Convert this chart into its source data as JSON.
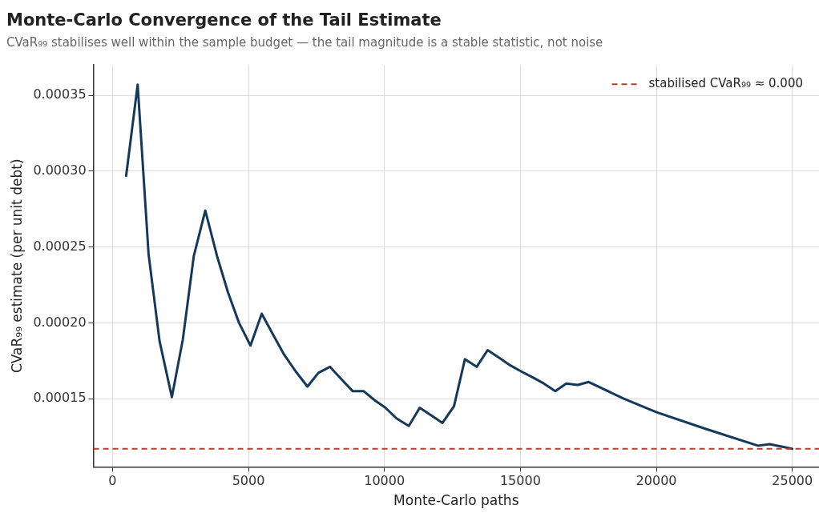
{
  "chart_data": {
    "type": "line",
    "title": "Monte-Carlo Convergence of the Tail Estimate",
    "subtitle": "CVaR₉₉ stabilises well within the sample budget — the tail magnitude is a stable statistic, not noise",
    "xlabel": "Monte-Carlo paths",
    "ylabel": "CVaR₉₉ estimate (per unit debt)",
    "x": [
      504,
      927,
      1330,
      1732,
      2185,
      2588,
      2991,
      3414,
      3846,
      4250,
      4653,
      5076,
      5489,
      5912,
      6314,
      6737,
      7170,
      7573,
      7996,
      8409,
      8832,
      9235,
      9637,
      10040,
      10444,
      10897,
      11299,
      11722,
      12135,
      12558,
      12960,
      13392,
      13795,
      14218,
      14622,
      15024,
      15458,
      15861,
      16284,
      16686,
      17109,
      17512,
      18800,
      20010,
      21823,
      23737,
      24169,
      24994
    ],
    "series": [
      {
        "color": "#14395b",
        "values": [
          0.000297,
          0.000357,
          0.000245,
          0.000188,
          0.000151,
          0.000189,
          0.000244,
          0.000274,
          0.000244,
          0.00022,
          0.0002,
          0.000185,
          0.000206,
          0.000192,
          0.000179,
          0.000168,
          0.000158,
          0.000167,
          0.000171,
          0.000163,
          0.000155,
          0.000155,
          0.000149,
          0.000144,
          0.000137,
          0.000132,
          0.000144,
          0.000139,
          0.000134,
          0.000145,
          0.000176,
          0.000171,
          0.000182,
          0.000177,
          0.000172,
          0.000168,
          0.000164,
          0.00016,
          0.000155,
          0.00016,
          0.000159,
          0.000161,
          0.00015,
          0.000141,
          0.00013,
          0.000119,
          0.00012,
          0.000117
        ]
      }
    ],
    "xlim": [
      -700,
      25980
    ],
    "xticks": [
      0,
      5000,
      10000,
      15000,
      20000,
      25000
    ],
    "ylim": [
      0.000105,
      0.00037
    ],
    "yticks": [
      {
        "value": 0.00015,
        "label": "0.00015"
      },
      {
        "value": 0.0002,
        "label": "0.00020"
      },
      {
        "value": 0.00025,
        "label": "0.00025"
      },
      {
        "value": 0.0003,
        "label": "0.00030"
      },
      {
        "value": 0.00035,
        "label": "0.00035"
      }
    ],
    "ref_lines": [
      {
        "axis": "y",
        "value": 0.000117,
        "label": "stabilised CVaR₉₉ ≈ 0.000",
        "color": "#c0392b",
        "line_style": "dashed"
      }
    ],
    "grid": true,
    "legend": "top right",
    "marker": "none",
    "line_style": "solid"
  }
}
